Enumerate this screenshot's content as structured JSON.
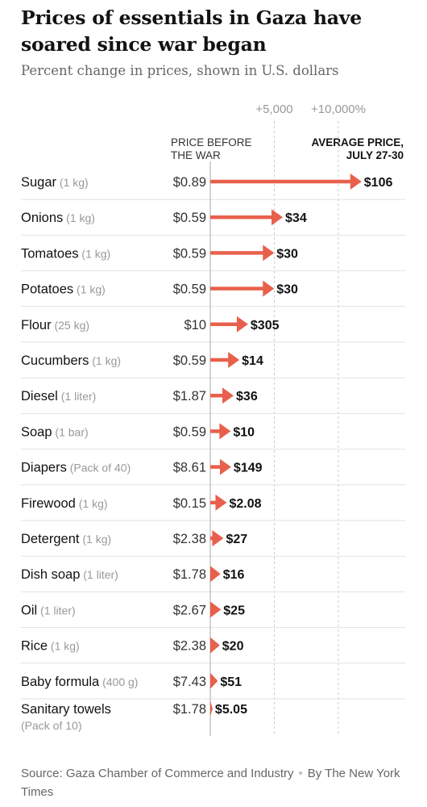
{
  "title": "Prices of essentials in Gaza have soared since war began",
  "subtitle": "Percent change in prices, shown in U.S. dollars",
  "columns": {
    "before": "PRICE BEFORE THE WAR",
    "after": "AVERAGE PRICE, JULY 27-30"
  },
  "chart_data": {
    "type": "bar",
    "orientation": "horizontal",
    "style": "arrows",
    "x_ticks": [
      {
        "value": 5000,
        "label": "+5,000"
      },
      {
        "value": 10000,
        "label": "+10,000%"
      }
    ],
    "xlim": [
      0,
      12000
    ],
    "grid": true,
    "items": [
      {
        "name": "Sugar",
        "unit": "(1 kg)",
        "before": "$0.89",
        "after": "$106",
        "pct_change": 11810
      },
      {
        "name": "Onions",
        "unit": "(1 kg)",
        "before": "$0.59",
        "after": "$34",
        "pct_change": 5663
      },
      {
        "name": "Tomatoes",
        "unit": "(1 kg)",
        "before": "$0.59",
        "after": "$30",
        "pct_change": 4985
      },
      {
        "name": "Potatoes",
        "unit": "(1 kg)",
        "before": "$0.59",
        "after": "$30",
        "pct_change": 4985
      },
      {
        "name": "Flour",
        "unit": "(25 kg)",
        "before": "$10",
        "after": "$305",
        "pct_change": 2950
      },
      {
        "name": "Cucumbers",
        "unit": "(1 kg)",
        "before": "$0.59",
        "after": "$14",
        "pct_change": 2273
      },
      {
        "name": "Diesel",
        "unit": "(1 liter)",
        "before": "$1.87",
        "after": "$36",
        "pct_change": 1825
      },
      {
        "name": "Soap",
        "unit": "(1 bar)",
        "before": "$0.59",
        "after": "$10",
        "pct_change": 1595
      },
      {
        "name": "Diapers",
        "unit": "(Pack of 40)",
        "before": "$8.61",
        "after": "$149",
        "pct_change": 1631
      },
      {
        "name": "Firewood",
        "unit": "(1 kg)",
        "before": "$0.15",
        "after": "$2.08",
        "pct_change": 1287
      },
      {
        "name": "Detergent",
        "unit": "(1 kg)",
        "before": "$2.38",
        "after": "$27",
        "pct_change": 1034
      },
      {
        "name": "Dish soap",
        "unit": "(1 liter)",
        "before": "$1.78",
        "after": "$16",
        "pct_change": 799
      },
      {
        "name": "Oil",
        "unit": "(1 liter)",
        "before": "$2.67",
        "after": "$25",
        "pct_change": 836
      },
      {
        "name": "Rice",
        "unit": "(1 kg)",
        "before": "$2.38",
        "after": "$20",
        "pct_change": 740
      },
      {
        "name": "Baby formula",
        "unit": "(400 g)",
        "before": "$7.43",
        "after": "$51",
        "pct_change": 586
      },
      {
        "name": "Sanitary towels",
        "unit": "(Pack of 10)",
        "before": "$1.78",
        "after": "$5.05",
        "pct_change": 184
      }
    ]
  },
  "source": {
    "text": "Source: Gaza Chamber of Commerce and Industry",
    "byline": "By The New York Times"
  },
  "colors": {
    "arrow": "#e8604c",
    "grid": "#cccccc",
    "separator": "#e2e2e2",
    "text": "#121212",
    "muted": "#999999"
  }
}
